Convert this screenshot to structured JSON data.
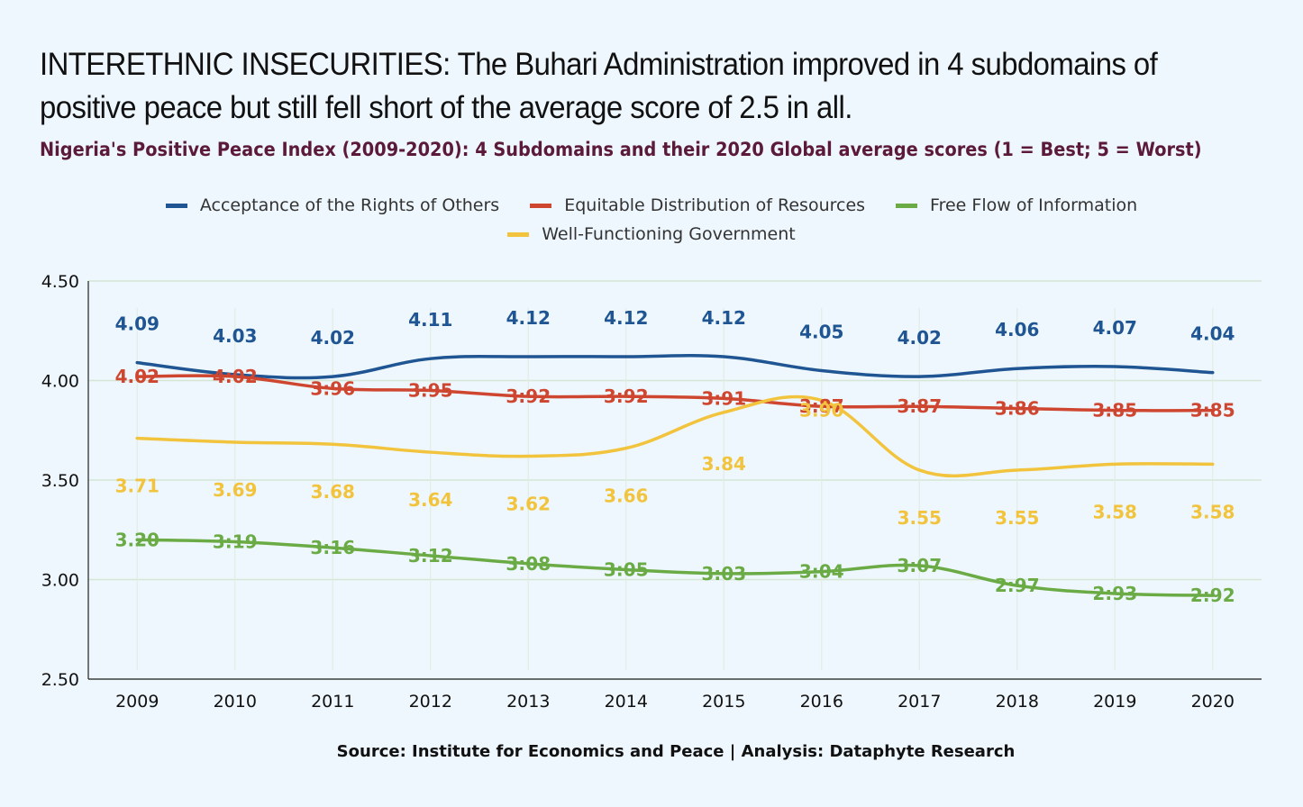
{
  "headline": {
    "line1": "INTERETHNIC INSECURITIES: The Buhari Administration improved in 4 subdomains of",
    "line2": "positive peace but still fell short of the average score of 2.5 in all."
  },
  "source": "Source: Institute for Economics and Peace | Analysis: Dataphyte Research",
  "chart_data": {
    "type": "line",
    "title": "Nigeria's Positive Peace Index (2009-2020): 4 Subdomains and their 2020 Global average scores (1 = Best; 5 = Worst)",
    "xlabel": "",
    "ylabel": "",
    "ylim": [
      2.5,
      4.5
    ],
    "yticks": [
      "2.50",
      "3.00",
      "3.50",
      "4.00",
      "4.50"
    ],
    "yticks_values": [
      2.5,
      3.0,
      3.5,
      4.0,
      4.5
    ],
    "categories": [
      "2009",
      "2010",
      "2011",
      "2012",
      "2013",
      "2014",
      "2015",
      "2016",
      "2017",
      "2018",
      "2019",
      "2020"
    ],
    "grid": "horizontal",
    "legend_position": "top",
    "series": [
      {
        "name": "Acceptance of the Rights of Others",
        "color": "#1f5592",
        "values": [
          4.09,
          4.03,
          4.02,
          4.11,
          4.12,
          4.12,
          4.12,
          4.05,
          4.02,
          4.06,
          4.07,
          4.04
        ],
        "labels": [
          "4.09",
          "4.03",
          "4.02",
          "4.11",
          "4.12",
          "4.12",
          "4.12",
          "4.05",
          "4.02",
          "4.06",
          "4.07",
          "4.04"
        ]
      },
      {
        "name": "Equitable Distribution of Resources",
        "color": "#cf4630",
        "values": [
          4.02,
          4.02,
          3.96,
          3.95,
          3.92,
          3.92,
          3.91,
          3.87,
          3.87,
          3.86,
          3.85,
          3.85
        ],
        "labels": [
          "4.02",
          "4:02",
          "3:96",
          "3:95",
          "3:92",
          "3:92",
          "3:91",
          "3:87",
          "3:87",
          "3:86",
          "3:85",
          "3:85"
        ]
      },
      {
        "name": "Free Flow of Information",
        "color": "#6bab46",
        "values": [
          3.2,
          3.19,
          3.16,
          3.12,
          3.08,
          3.05,
          3.03,
          3.04,
          3.07,
          2.97,
          2.93,
          2.92
        ],
        "labels": [
          "3.20",
          "3:19",
          "3:16",
          "3:12",
          "3:08",
          "3:05",
          "3:03",
          "3:04",
          "3:07",
          "2:97",
          "2:93",
          "2:92"
        ]
      },
      {
        "name": "Well-Functioning Government",
        "color": "#f2c43d",
        "values": [
          3.71,
          3.69,
          3.68,
          3.64,
          3.62,
          3.66,
          3.84,
          3.9,
          3.55,
          3.55,
          3.58,
          3.58
        ],
        "labels": [
          "3.71",
          "3.69",
          "3.68",
          "3.64",
          "3.62",
          "3.66",
          "3.84",
          "3.90",
          "3.55",
          "3.55",
          "3.58",
          "3.58"
        ]
      }
    ]
  }
}
